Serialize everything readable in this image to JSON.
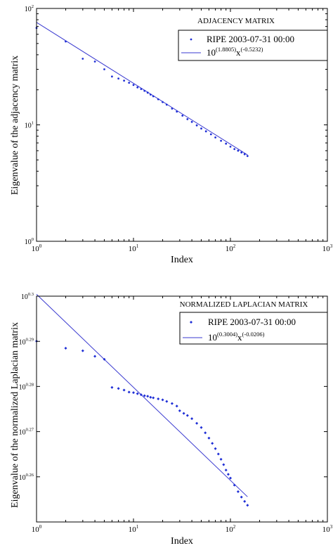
{
  "chart_data": [
    {
      "type": "scatter",
      "title": "ADJACENCY MATRIX",
      "xlabel": "Index",
      "ylabel": "Eigenvalue of the adjacency matrix",
      "x_scale": "log",
      "y_scale": "log",
      "xlim": [
        1,
        1000
      ],
      "ylim": [
        1,
        100
      ],
      "x_ticks": [
        {
          "value": 1,
          "base": "10",
          "exp": "0"
        },
        {
          "value": 10,
          "base": "10",
          "exp": "1"
        },
        {
          "value": 100,
          "base": "10",
          "exp": "2"
        },
        {
          "value": 1000,
          "base": "10",
          "exp": "3"
        }
      ],
      "y_ticks": [
        {
          "value": 1,
          "base": "10",
          "exp": "0"
        },
        {
          "value": 10,
          "base": "10",
          "exp": "1"
        },
        {
          "value": 100,
          "base": "10",
          "exp": "2"
        }
      ],
      "series": [
        {
          "name": "RIPE 2003-07-31 00:00",
          "marker": "dot",
          "x": [
            1,
            2,
            3,
            4,
            5,
            6,
            7,
            8,
            9,
            10,
            11,
            12,
            13,
            14,
            15,
            16,
            18,
            20,
            22,
            25,
            28,
            32,
            36,
            40,
            45,
            50,
            56,
            63,
            70,
            80,
            90,
            100,
            110,
            120,
            130,
            140,
            150
          ],
          "y": [
            68,
            52,
            37,
            35,
            30,
            26,
            25,
            24,
            23,
            22,
            21,
            20.3,
            19.6,
            18.9,
            18.2,
            17.6,
            16.6,
            15.7,
            14.9,
            13.8,
            13.0,
            12.0,
            11.2,
            10.6,
            9.9,
            9.3,
            8.8,
            8.3,
            7.8,
            7.3,
            6.9,
            6.5,
            6.2,
            6.0,
            5.8,
            5.6,
            5.4
          ]
        }
      ],
      "fit": {
        "name_base": "10",
        "name_exp": "(1.8805)",
        "name_var": "x",
        "name_var_exp": "(-0.5232)",
        "log10_coef": 1.8805,
        "exponent": -0.5232,
        "x_range": [
          1,
          150
        ]
      },
      "legend_placement": "top-right"
    },
    {
      "type": "scatter",
      "title": "NORMALIZED LAPLACIAN MATRIX",
      "xlabel": "Index",
      "ylabel": "Eigenvalue of the normalized Laplacian matrix",
      "x_scale": "log",
      "y_scale": "log",
      "xlim": [
        1,
        1000
      ],
      "ylim": [
        1.77828,
        1.99526
      ],
      "x_ticks": [
        {
          "value": 1,
          "base": "10",
          "exp": "0"
        },
        {
          "value": 10,
          "base": "10",
          "exp": "1"
        },
        {
          "value": 100,
          "base": "10",
          "exp": "2"
        },
        {
          "value": 1000,
          "base": "10",
          "exp": "3"
        }
      ],
      "y_ticks": [
        {
          "value": 1.8197,
          "base": "10",
          "exp": "0.26"
        },
        {
          "value": 1.8621,
          "base": "10",
          "exp": "0.27"
        },
        {
          "value": 1.9055,
          "base": "10",
          "exp": "0.28"
        },
        {
          "value": 1.9498,
          "base": "10",
          "exp": "0.29"
        },
        {
          "value": 1.99526,
          "base": "10",
          "exp": "0.3"
        }
      ],
      "series": [
        {
          "name": "RIPE 2003-07-31 00:00",
          "marker": "diamond",
          "x": [
            1,
            2,
            3,
            4,
            5,
            6,
            7,
            8,
            9,
            10,
            11,
            12,
            13,
            14,
            15,
            16,
            18,
            20,
            22,
            25,
            28,
            30,
            33,
            36,
            40,
            45,
            50,
            55,
            60,
            65,
            70,
            75,
            80,
            85,
            90,
            95,
            100,
            110,
            120,
            130,
            140,
            150
          ],
          "y": [
            1.95,
            1.943,
            1.9405,
            1.935,
            1.932,
            1.9045,
            1.9035,
            1.902,
            1.9,
            1.8995,
            1.8985,
            1.8975,
            1.8965,
            1.896,
            1.895,
            1.8945,
            1.8935,
            1.8925,
            1.891,
            1.889,
            1.8865,
            1.882,
            1.8795,
            1.8775,
            1.8745,
            1.87,
            1.866,
            1.861,
            1.856,
            1.851,
            1.846,
            1.841,
            1.836,
            1.831,
            1.826,
            1.822,
            1.8185,
            1.812,
            1.806,
            1.801,
            1.797,
            1.7935
          ]
        }
      ],
      "fit": {
        "name_base": "10",
        "name_exp": "(0.3004)",
        "name_var": "x",
        "name_var_exp": "(-0.0206)",
        "log10_coef": 0.3004,
        "exponent": -0.0206,
        "x_range": [
          1,
          150
        ]
      },
      "legend_placement": "top-right"
    }
  ]
}
